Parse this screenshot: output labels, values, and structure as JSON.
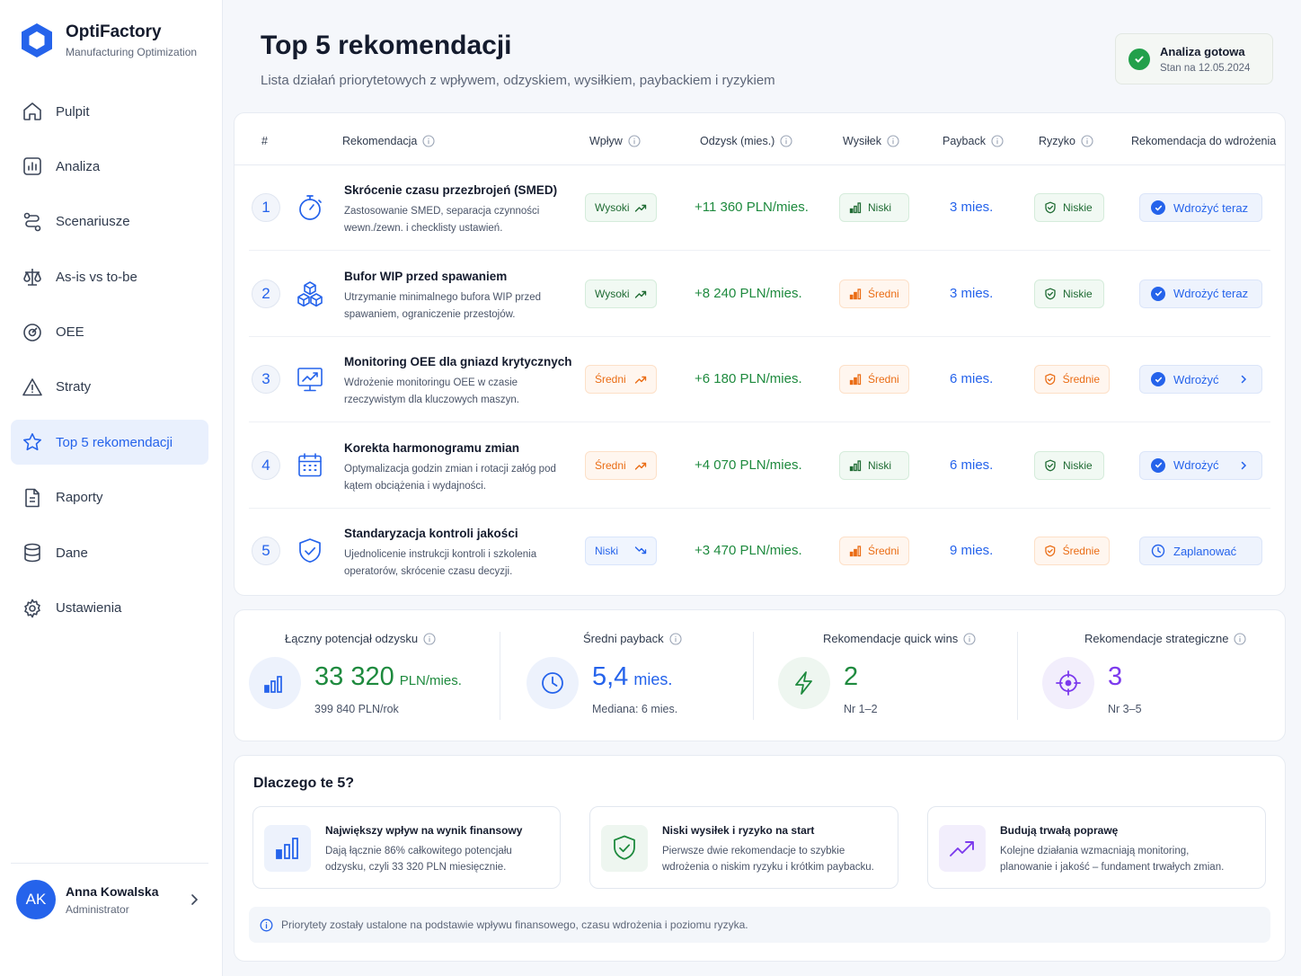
{
  "brand": {
    "name": "OptiFactory",
    "subtitle": "Manufacturing Optimization"
  },
  "nav": [
    {
      "label": "Pulpit",
      "icon": "home-icon"
    },
    {
      "label": "Analiza",
      "icon": "bar-chart-icon"
    },
    {
      "label": "Scenariusze",
      "icon": "route-icon"
    },
    {
      "label": "As-is vs to-be",
      "icon": "scale-icon"
    },
    {
      "label": "OEE",
      "icon": "target-icon"
    },
    {
      "label": "Straty",
      "icon": "warning-icon"
    },
    {
      "label": "Top 5 rekomendacji",
      "icon": "star-icon",
      "active": true
    },
    {
      "label": "Raporty",
      "icon": "document-icon"
    },
    {
      "label": "Dane",
      "icon": "database-icon"
    },
    {
      "label": "Ustawienia",
      "icon": "gear-icon"
    }
  ],
  "user": {
    "initials": "AK",
    "name": "Anna Kowalska",
    "role": "Administrator"
  },
  "page": {
    "title": "Top 5 rekomendacji",
    "subtitle": "Lista działań priorytetowych z wpływem, odzyskiem, wysiłkiem, paybackiem i ryzykiem"
  },
  "status": {
    "title": "Analiza gotowa",
    "subtitle": "Stan na 12.05.2024"
  },
  "table": {
    "headers": {
      "num": "#",
      "recommendation": "Rekomendacja",
      "impact": "Wpływ",
      "gain": "Odzysk (mies.)",
      "effort": "Wysiłek",
      "payback": "Payback",
      "risk": "Ryzyko",
      "action": "Rekomendacja do wdrożenia"
    },
    "rows": [
      {
        "num": "1",
        "icon": "stopwatch-icon",
        "title": "Skrócenie czasu przezbrojeń (SMED)",
        "desc": "Zastosowanie SMED, separacja czynności wewn./zewn. i checklisty ustawień.",
        "impact": "Wysoki",
        "impact_level": "high",
        "gain": "+11 360 PLN/mies.",
        "effort": "Niski",
        "effort_level": "low",
        "payback": "3 mies.",
        "risk": "Niskie",
        "risk_level": "low",
        "action": "Wdrożyć teraz",
        "action_type": "now"
      },
      {
        "num": "2",
        "icon": "boxes-icon",
        "title": "Bufor WIP przed spawaniem",
        "desc": "Utrzymanie minimalnego bufora WIP przed spawaniem, ograniczenie przestojów.",
        "impact": "Wysoki",
        "impact_level": "high",
        "gain": "+8 240 PLN/mies.",
        "effort": "Średni",
        "effort_level": "medium",
        "payback": "3 mies.",
        "risk": "Niskie",
        "risk_level": "low",
        "action": "Wdrożyć teraz",
        "action_type": "now"
      },
      {
        "num": "3",
        "icon": "monitor-chart-icon",
        "title": "Monitoring OEE dla gniazd krytycznych",
        "desc": "Wdrożenie monitoringu OEE w czasie rzeczywistym dla kluczowych maszyn.",
        "impact": "Średni",
        "impact_level": "medium",
        "gain": "+6 180 PLN/mies.",
        "effort": "Średni",
        "effort_level": "medium",
        "payback": "6 mies.",
        "risk": "Średnie",
        "risk_level": "medium",
        "action": "Wdrożyć",
        "action_type": "go"
      },
      {
        "num": "4",
        "icon": "calendar-icon",
        "title": "Korekta harmonogramu zmian",
        "desc": "Optymalizacja godzin zmian i rotacji załóg pod kątem obciążenia i wydajności.",
        "impact": "Średni",
        "impact_level": "medium",
        "gain": "+4 070 PLN/mies.",
        "effort": "Niski",
        "effort_level": "low",
        "payback": "6 mies.",
        "risk": "Niskie",
        "risk_level": "low",
        "action": "Wdrożyć",
        "action_type": "go"
      },
      {
        "num": "5",
        "icon": "shield-check-icon",
        "title": "Standaryzacja kontroli jakości",
        "desc": "Ujednolicenie instrukcji kontroli i szkolenia operatorów, skrócenie czasu decyzji.",
        "impact": "Niski",
        "impact_level": "low",
        "gain": "+3 470 PLN/mies.",
        "effort": "Średni",
        "effort_level": "medium",
        "payback": "9 mies.",
        "risk": "Średnie",
        "risk_level": "medium",
        "action": "Zaplanować",
        "action_type": "plan"
      }
    ]
  },
  "stats": [
    {
      "label": "Łączny potencjał odzysku",
      "icon": "bar-chart-icon",
      "value": "33 320",
      "unit": "PLN/mies.",
      "sub": "399 840 PLN/rok",
      "color": "#1e8a3e"
    },
    {
      "label": "Średni payback",
      "icon": "clock-icon",
      "value": "5,4",
      "unit": "mies.",
      "sub": "Mediana: 6 mies.",
      "color": "#2563eb"
    },
    {
      "label": "Rekomendacje quick wins",
      "icon": "lightning-icon",
      "value": "2",
      "unit": "",
      "sub": "Nr 1–2",
      "color": "#1e8a3e"
    },
    {
      "label": "Rekomendacje strategiczne",
      "icon": "crosshair-icon",
      "value": "3",
      "unit": "",
      "sub": "Nr 3–5",
      "color": "#7c3aed"
    }
  ],
  "why": {
    "title": "Dlaczego te 5?",
    "items": [
      {
        "icon": "bar-chart-icon",
        "title": "Największy wpływ na wynik finansowy",
        "desc": "Dają łącznie 86% całkowitego potencjału odzysku, czyli 33 320 PLN miesięcznie."
      },
      {
        "icon": "shield-check-icon",
        "title": "Niski wysiłek i ryzyko na start",
        "desc": "Pierwsze dwie rekomendacje to szybkie wdrożenia o niskim ryzyku i krótkim paybacku."
      },
      {
        "icon": "trend-up-icon",
        "title": "Budują trwałą poprawę",
        "desc": "Kolejne działania wzmacniają monitoring, planowanie i jakość – fundament trwałych zmian."
      }
    ],
    "note": "Priorytety zostały ustalone na podstawie wpływu finansowego, czasu wdrożenia i poziomu ryzyka."
  },
  "colors": {
    "accent": "#2563eb",
    "green": "#1e8a3e",
    "orange": "#ea6c14",
    "purple": "#7c3aed"
  }
}
